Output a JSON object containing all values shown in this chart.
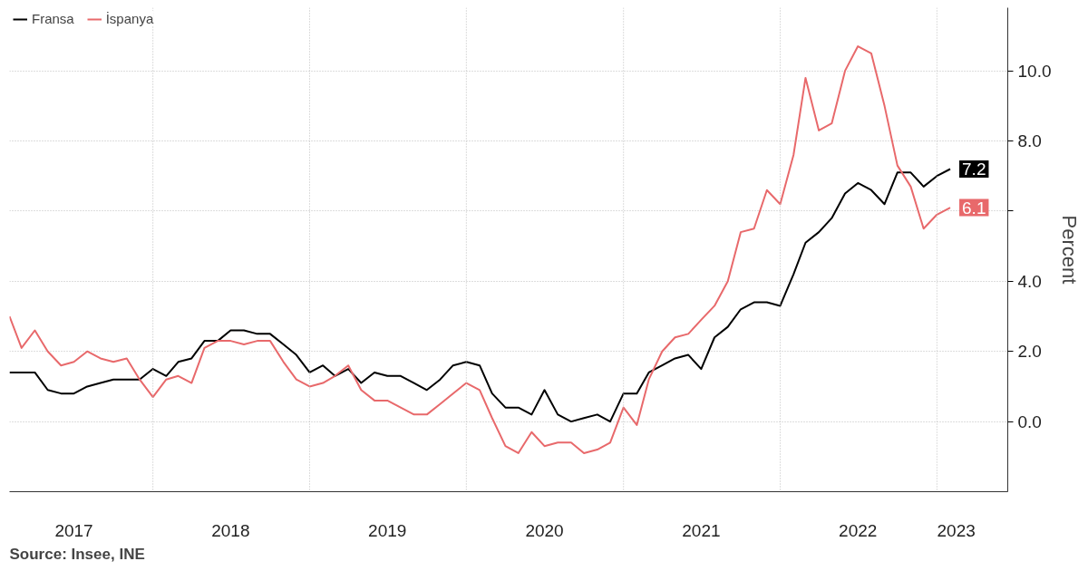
{
  "chart_data": {
    "type": "line",
    "x": [
      "2017-02",
      "2017-03",
      "2017-04",
      "2017-05",
      "2017-06",
      "2017-07",
      "2017-08",
      "2017-09",
      "2017-10",
      "2017-11",
      "2017-12",
      "2018-01",
      "2018-02",
      "2018-03",
      "2018-04",
      "2018-05",
      "2018-06",
      "2018-07",
      "2018-08",
      "2018-09",
      "2018-10",
      "2018-11",
      "2018-12",
      "2019-01",
      "2019-02",
      "2019-03",
      "2019-04",
      "2019-05",
      "2019-06",
      "2019-07",
      "2019-08",
      "2019-09",
      "2019-10",
      "2019-11",
      "2019-12",
      "2020-01",
      "2020-02",
      "2020-03",
      "2020-04",
      "2020-05",
      "2020-06",
      "2020-07",
      "2020-08",
      "2020-09",
      "2020-10",
      "2020-11",
      "2020-12",
      "2021-01",
      "2021-02",
      "2021-03",
      "2021-04",
      "2021-05",
      "2021-06",
      "2021-07",
      "2021-08",
      "2021-09",
      "2021-10",
      "2021-11",
      "2021-12",
      "2022-01",
      "2022-02",
      "2022-03",
      "2022-04",
      "2022-05",
      "2022-06",
      "2022-07",
      "2022-08",
      "2022-09",
      "2022-10",
      "2022-11",
      "2022-12",
      "2023-01",
      "2023-02"
    ],
    "series": [
      {
        "name": "Fransa",
        "color": "#000000",
        "values": [
          1.4,
          1.4,
          1.4,
          0.9,
          0.8,
          0.8,
          1.0,
          1.1,
          1.2,
          1.2,
          1.2,
          1.5,
          1.3,
          1.7,
          1.8,
          2.3,
          2.3,
          2.6,
          2.6,
          2.5,
          2.5,
          2.2,
          1.9,
          1.4,
          1.6,
          1.3,
          1.5,
          1.1,
          1.4,
          1.3,
          1.3,
          1.1,
          0.9,
          1.2,
          1.6,
          1.7,
          1.6,
          0.8,
          0.4,
          0.4,
          0.2,
          0.9,
          0.2,
          0.0,
          0.1,
          0.2,
          0.0,
          0.8,
          0.8,
          1.4,
          1.6,
          1.8,
          1.9,
          1.5,
          2.4,
          2.7,
          3.2,
          3.4,
          3.4,
          3.3,
          4.2,
          5.1,
          5.4,
          5.8,
          6.5,
          6.8,
          6.6,
          6.2,
          7.1,
          7.1,
          6.7,
          7.0,
          7.2
        ]
      },
      {
        "name": "İspanya",
        "color": "#e8696b",
        "values": [
          3.0,
          2.1,
          2.6,
          2.0,
          1.6,
          1.7,
          2.0,
          1.8,
          1.7,
          1.8,
          1.2,
          0.7,
          1.2,
          1.3,
          1.1,
          2.1,
          2.3,
          2.3,
          2.2,
          2.3,
          2.3,
          1.7,
          1.2,
          1.0,
          1.1,
          1.3,
          1.6,
          0.9,
          0.6,
          0.6,
          0.4,
          0.2,
          0.2,
          0.5,
          0.8,
          1.1,
          0.9,
          0.1,
          -0.7,
          -0.9,
          -0.3,
          -0.7,
          -0.6,
          -0.6,
          -0.9,
          -0.8,
          -0.6,
          0.4,
          -0.1,
          1.2,
          2.0,
          2.4,
          2.5,
          2.9,
          3.3,
          4.0,
          5.4,
          5.5,
          6.6,
          6.2,
          7.6,
          9.8,
          8.3,
          8.5,
          10.0,
          10.7,
          10.5,
          9.0,
          7.3,
          6.7,
          5.5,
          5.9,
          6.1
        ]
      }
    ],
    "xlim": [
      "2017-02-01",
      "2023-06-15"
    ],
    "xticks": [
      {
        "value": "2017-07-01",
        "label": "2017"
      },
      {
        "value": "2018-01-01",
        "label": null
      },
      {
        "value": "2018-07-01",
        "label": "2018"
      },
      {
        "value": "2019-01-01",
        "label": null
      },
      {
        "value": "2019-07-01",
        "label": "2019"
      },
      {
        "value": "2020-01-01",
        "label": null
      },
      {
        "value": "2020-07-01",
        "label": "2020"
      },
      {
        "value": "2021-01-01",
        "label": null
      },
      {
        "value": "2021-07-01",
        "label": "2021"
      },
      {
        "value": "2022-01-01",
        "label": null
      },
      {
        "value": "2022-07-01",
        "label": "2022"
      },
      {
        "value": "2023-01-01",
        "label": null
      },
      {
        "value": "2023-02-15",
        "label": "2023"
      }
    ],
    "ylim": [
      -2.0,
      11.8
    ],
    "yticks": [
      {
        "value": 0,
        "label": "0.0"
      },
      {
        "value": 2,
        "label": "2.0"
      },
      {
        "value": 4,
        "label": "4.0"
      },
      {
        "value": 6,
        "label": null
      },
      {
        "value": 8,
        "label": "8.0"
      },
      {
        "value": 10,
        "label": "10.0"
      }
    ],
    "ylabel": "Percent",
    "grid": true,
    "legend": "top left",
    "annotations": [
      {
        "text": "7.2",
        "x": "2023-02",
        "y": 7.2
      },
      {
        "text": "6.1",
        "x": "2023-02",
        "y": 6.1
      },
      "Source: Insee, INE"
    ]
  }
}
